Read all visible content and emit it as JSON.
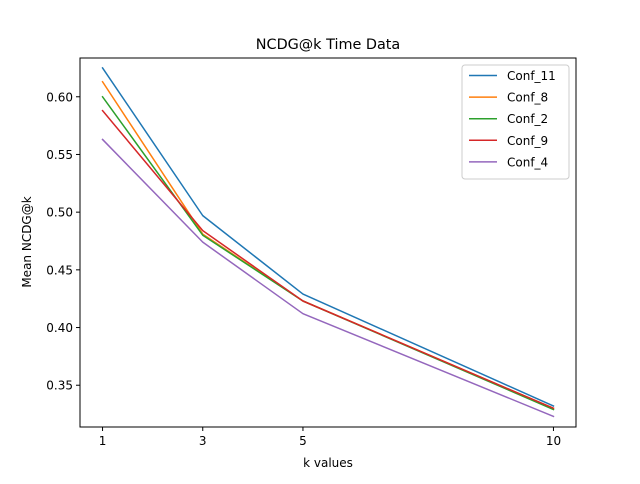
{
  "chart_data": {
    "type": "line",
    "title": "NCDG@k Time Data",
    "xlabel": "k values",
    "ylabel": "Mean NCDG@k",
    "x": [
      1,
      3,
      5,
      10
    ],
    "xticks": [
      1,
      3,
      5,
      10
    ],
    "xtick_labels": [
      "1",
      "3",
      "5",
      "10"
    ],
    "yticks": [
      0.35,
      0.4,
      0.45,
      0.5,
      0.55,
      0.6
    ],
    "ytick_labels": [
      "0.35",
      "0.40",
      "0.45",
      "0.50",
      "0.55",
      "0.60"
    ],
    "xlim": [
      0.55,
      10.45
    ],
    "ylim": [
      0.3138,
      0.6336
    ],
    "grid": false,
    "legend_position": "top-right",
    "series": [
      {
        "name": "Conf_11",
        "color": "#1f77b4",
        "values": [
          0.625,
          0.497,
          0.429,
          0.332
        ]
      },
      {
        "name": "Conf_8",
        "color": "#ff7f0e",
        "values": [
          0.613,
          0.481,
          0.423,
          0.33
        ]
      },
      {
        "name": "Conf_2",
        "color": "#2ca02c",
        "values": [
          0.6,
          0.48,
          0.423,
          0.329
        ]
      },
      {
        "name": "Conf_9",
        "color": "#d62728",
        "values": [
          0.588,
          0.484,
          0.423,
          0.33
        ]
      },
      {
        "name": "Conf_4",
        "color": "#9467bd",
        "values": [
          0.563,
          0.474,
          0.412,
          0.323
        ]
      }
    ]
  }
}
